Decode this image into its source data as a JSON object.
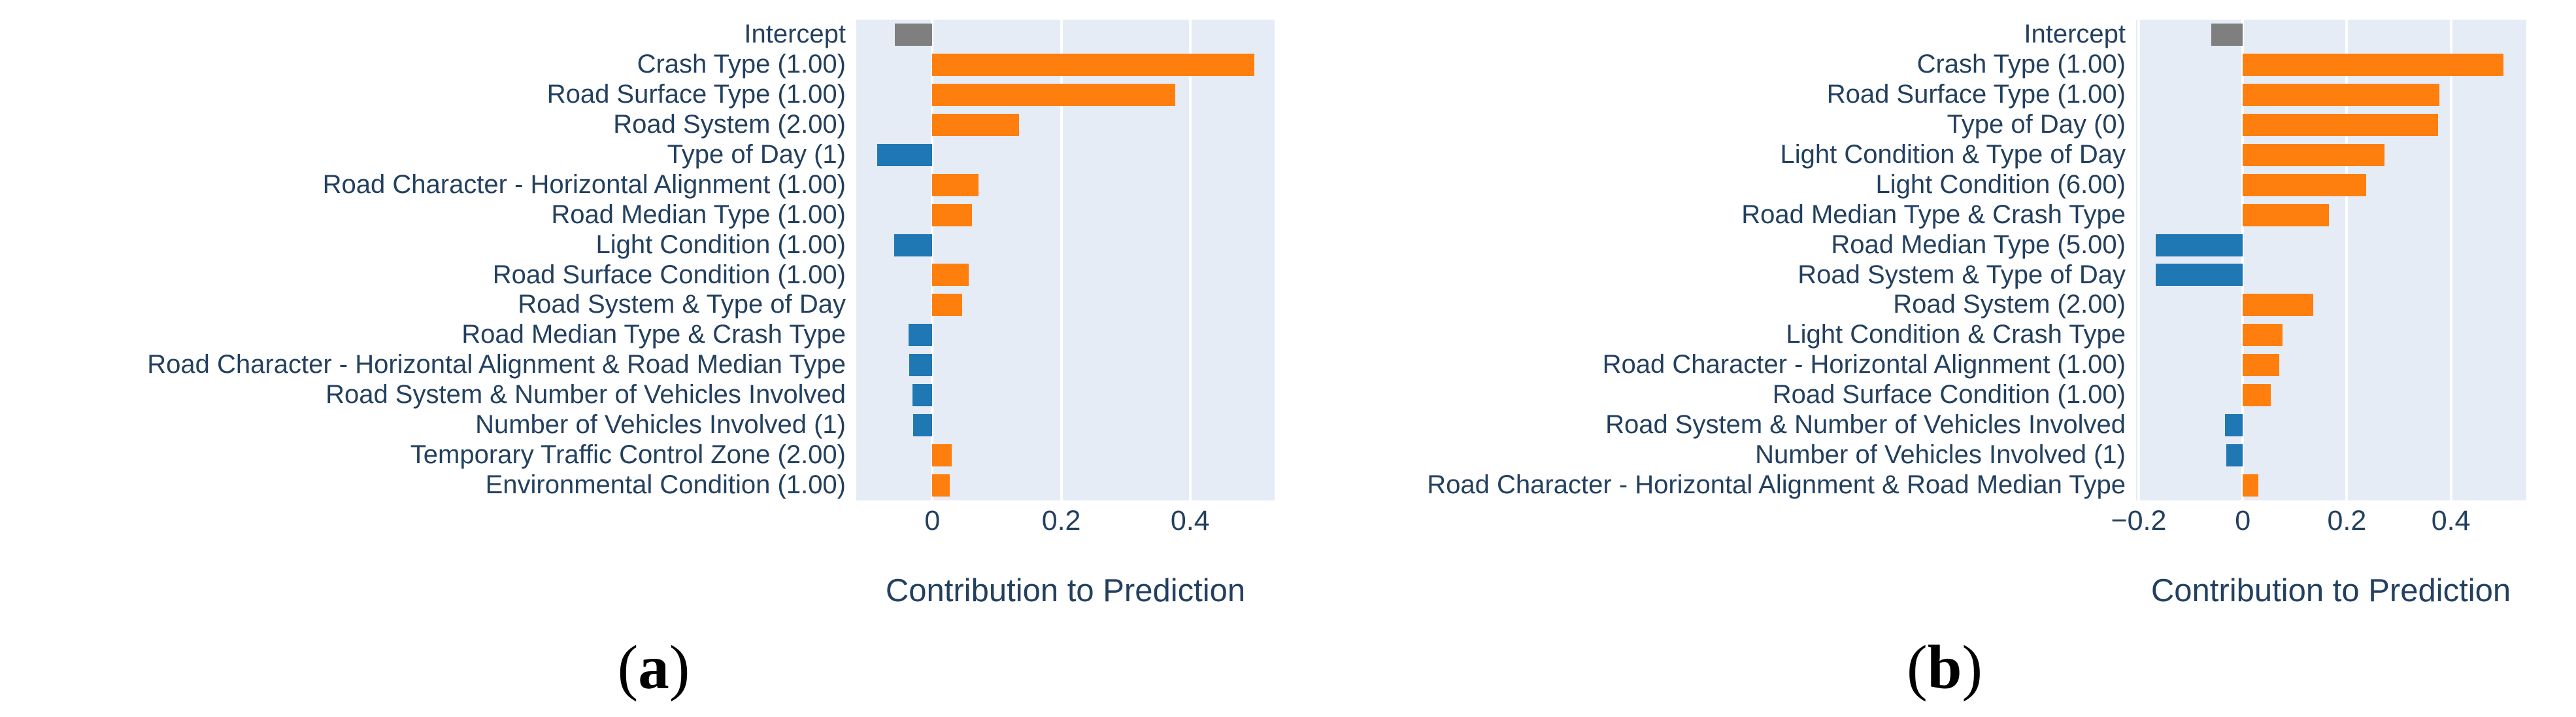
{
  "figure": {
    "captions": [
      {
        "open": "(",
        "letter": "a",
        "close": ")"
      },
      {
        "open": "(",
        "letter": "b",
        "close": ")"
      }
    ]
  },
  "colors": {
    "positive_bar": "#ff7f0e",
    "negative_bar": "#1f77b4",
    "intercept_bar": "#7f7f7f",
    "plot_background": "#e5ecf6",
    "gridline": "#ffffff",
    "axis_text": "#23405f",
    "caption_text": "#000000"
  },
  "chart_data": [
    {
      "type": "bar",
      "orientation": "horizontal",
      "title": "",
      "xlabel": "Contribution to Prediction",
      "ylabel": "",
      "x_range": [
        -0.118,
        0.531
      ],
      "grid": true,
      "legend": "none",
      "x_ticks": [
        {
          "value": 0,
          "label": "0"
        },
        {
          "value": 0.2,
          "label": "0.2"
        },
        {
          "value": 0.4,
          "label": "0.4"
        }
      ],
      "categories": [
        "Intercept",
        "Crash Type (1.00)",
        "Road Surface Type (1.00)",
        "Road System (2.00)",
        "Type of Day (1)",
        "Road Character - Horizontal Alignment (1.00)",
        "Road Median Type (1.00)",
        "Light Condition (1.00)",
        "Road Surface Condition (1.00)",
        "Road System & Type of Day",
        "Road Median Type & Crash Type",
        "Road Character - Horizontal Alignment & Road Median Type",
        "Road System & Number of Vehicles Involved",
        "Number of Vehicles Involved (1)",
        "Temporary Traffic Control Zone (2.00)",
        "Environmental Condition (1.00)"
      ],
      "values": [
        -0.058,
        0.5,
        0.377,
        0.135,
        -0.086,
        0.072,
        0.061,
        -0.059,
        0.056,
        0.046,
        -0.037,
        -0.036,
        -0.031,
        -0.03,
        0.03,
        0.027
      ]
    },
    {
      "type": "bar",
      "orientation": "horizontal",
      "title": "",
      "xlabel": "Contribution to Prediction",
      "ylabel": "",
      "x_range": [
        -0.205,
        0.545
      ],
      "grid": true,
      "legend": "none",
      "x_ticks": [
        {
          "value": -0.2,
          "label": "−0.2"
        },
        {
          "value": 0,
          "label": "0"
        },
        {
          "value": 0.2,
          "label": "0.2"
        },
        {
          "value": 0.4,
          "label": "0.4"
        }
      ],
      "categories": [
        "Intercept",
        "Crash Type (1.00)",
        "Road Surface Type (1.00)",
        "Type of Day (0)",
        "Light Condition & Type of Day",
        "Light Condition (6.00)",
        "Road Median Type & Crash Type",
        "Road Median Type (5.00)",
        "Road System & Type of Day",
        "Road System (2.00)",
        "Light Condition & Crash Type",
        "Road Character - Horizontal Alignment (1.00)",
        "Road Surface Condition (1.00)",
        "Road System & Number of Vehicles Involved",
        "Number of Vehicles Involved (1)",
        "Road Character - Horizontal Alignment & Road Median Type"
      ],
      "values": [
        -0.061,
        0.501,
        0.378,
        0.375,
        0.273,
        0.237,
        0.165,
        -0.167,
        -0.167,
        0.136,
        0.077,
        0.07,
        0.054,
        -0.034,
        -0.032,
        0.03
      ]
    }
  ]
}
